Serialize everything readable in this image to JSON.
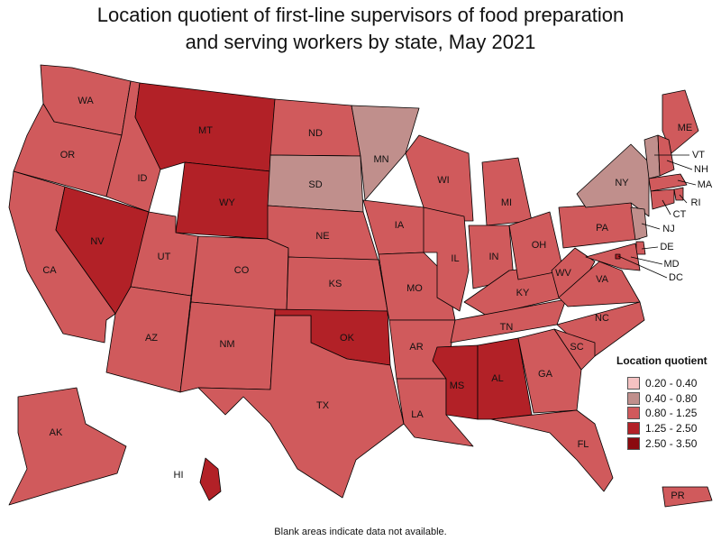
{
  "title_line1": "Location quotient of first-line supervisors of food preparation",
  "title_line2": "and serving workers by state, May 2021",
  "legend": {
    "title": "Location quotient",
    "bins": [
      {
        "label": "0.20 - 0.40",
        "color": "#f4c2c2"
      },
      {
        "label": "0.40 - 0.80",
        "color": "#c08f8c"
      },
      {
        "label": "0.80 - 1.25",
        "color": "#d05a5c"
      },
      {
        "label": "1.25 - 2.50",
        "color": "#b22127"
      },
      {
        "label": "2.50 - 3.50",
        "color": "#8b0a0f"
      }
    ]
  },
  "footnote": "Blank areas indicate data not available.",
  "states": {
    "WA": 2,
    "OR": 2,
    "CA": 2,
    "ID": 2,
    "NV": 3,
    "MT": 3,
    "WY": 3,
    "UT": 2,
    "AZ": 2,
    "CO": 2,
    "NM": 2,
    "ND": 2,
    "SD": 1,
    "NE": 2,
    "KS": 2,
    "OK": 3,
    "TX": 2,
    "MN": 1,
    "IA": 2,
    "MO": 2,
    "AR": 2,
    "LA": 2,
    "WI": 2,
    "IL": 2,
    "MS": 3,
    "MI": 2,
    "IN": 2,
    "KY": 2,
    "TN": 2,
    "AL": 3,
    "GA": 2,
    "FL": 2,
    "OH": 2,
    "WV": 2,
    "VA": 2,
    "NC": 2,
    "SC": 2,
    "PA": 2,
    "NY": 1,
    "ME": 2,
    "VT": 1,
    "NH": 2,
    "MA": 2,
    "RI": 2,
    "CT": 2,
    "NJ": 1,
    "DE": 2,
    "MD": 2,
    "DC": 3,
    "AK": 2,
    "HI": 3,
    "PR": 2
  }
}
